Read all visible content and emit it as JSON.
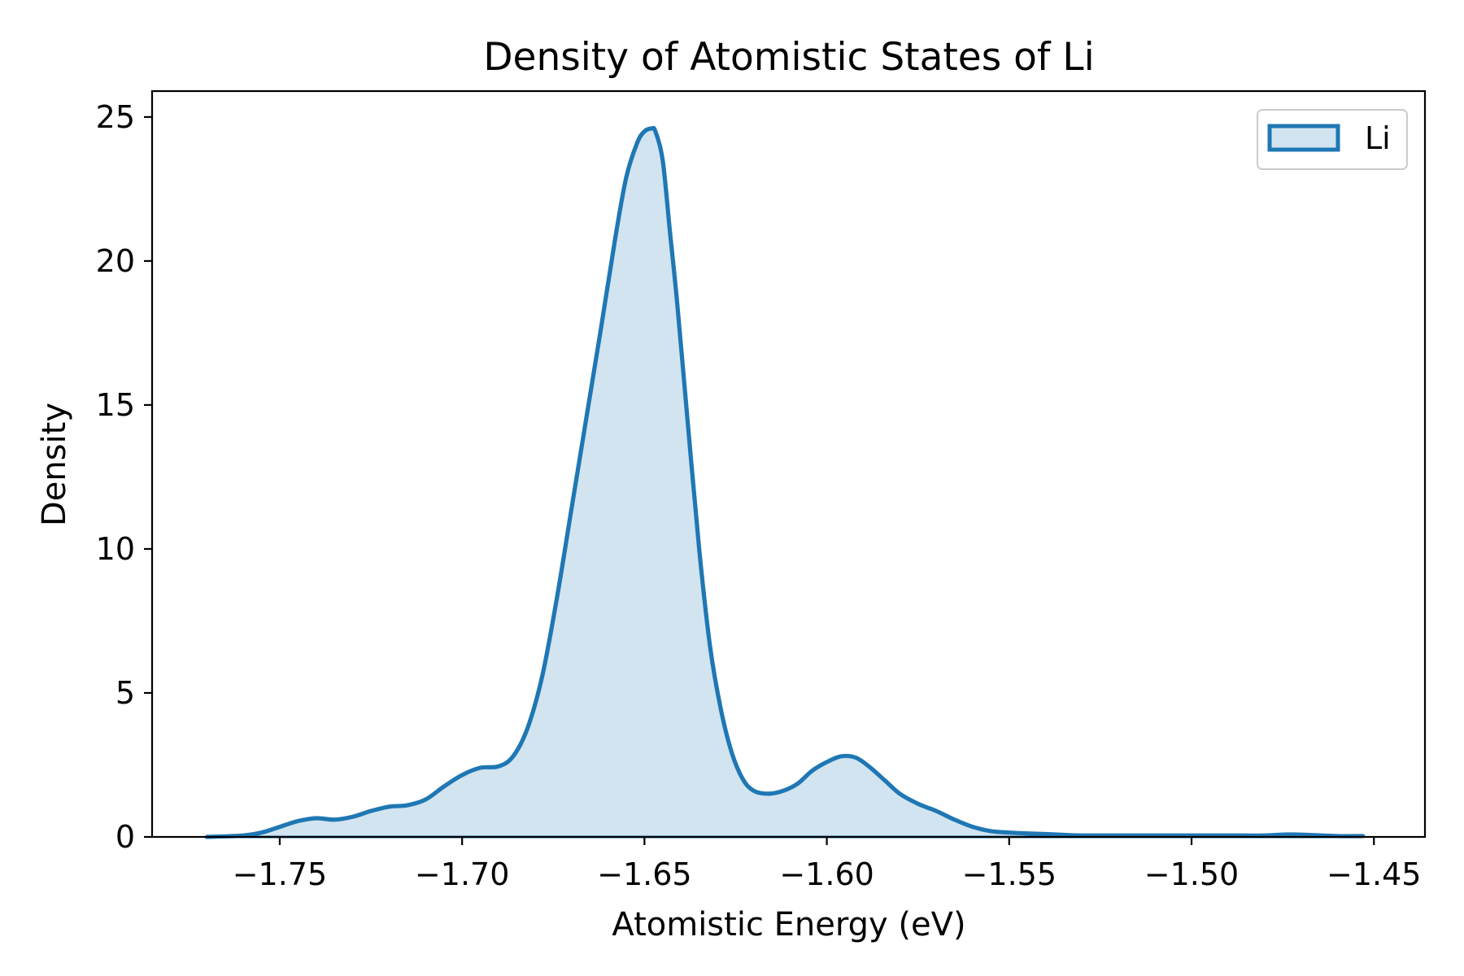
{
  "chart_data": {
    "type": "area",
    "title": "Density of Atomistic States of Li",
    "xlabel": "Atomistic Energy (eV)",
    "ylabel": "Density",
    "xlim": [
      -1.785,
      -1.436
    ],
    "ylim": [
      0,
      25.9
    ],
    "xticks": [
      -1.75,
      -1.7,
      -1.65,
      -1.6,
      -1.55,
      -1.5,
      -1.45
    ],
    "xtick_labels": [
      "−1.75",
      "−1.70",
      "−1.65",
      "−1.60",
      "−1.55",
      "−1.50",
      "−1.45"
    ],
    "yticks": [
      0,
      5,
      10,
      15,
      20,
      25
    ],
    "ytick_labels": [
      "0",
      "5",
      "10",
      "15",
      "20",
      "25"
    ],
    "grid": false,
    "legend_position": "top-right",
    "series": [
      {
        "name": "Li",
        "color": "#1f77b4",
        "fill_color": "#1f77b4",
        "fill_opacity": 0.2,
        "x": [
          -1.77,
          -1.765,
          -1.76,
          -1.755,
          -1.75,
          -1.745,
          -1.74,
          -1.735,
          -1.73,
          -1.725,
          -1.72,
          -1.715,
          -1.71,
          -1.705,
          -1.7,
          -1.695,
          -1.69,
          -1.686,
          -1.682,
          -1.678,
          -1.674,
          -1.67,
          -1.666,
          -1.662,
          -1.658,
          -1.655,
          -1.652,
          -1.65,
          -1.648,
          -1.647,
          -1.645,
          -1.643,
          -1.641,
          -1.638,
          -1.635,
          -1.632,
          -1.629,
          -1.626,
          -1.623,
          -1.62,
          -1.616,
          -1.612,
          -1.608,
          -1.604,
          -1.6,
          -1.596,
          -1.592,
          -1.588,
          -1.584,
          -1.58,
          -1.575,
          -1.57,
          -1.565,
          -1.56,
          -1.555,
          -1.55,
          -1.545,
          -1.54,
          -1.535,
          -1.53,
          -1.52,
          -1.51,
          -1.5,
          -1.49,
          -1.48,
          -1.475,
          -1.47,
          -1.46,
          -1.453
        ],
        "y": [
          0.0,
          0.02,
          0.05,
          0.15,
          0.35,
          0.55,
          0.65,
          0.6,
          0.7,
          0.9,
          1.05,
          1.1,
          1.3,
          1.75,
          2.15,
          2.4,
          2.45,
          2.8,
          3.8,
          5.6,
          8.3,
          11.4,
          14.5,
          17.6,
          20.8,
          22.9,
          24.1,
          24.5,
          24.6,
          24.5,
          23.5,
          21.0,
          18.5,
          14.2,
          10.0,
          6.6,
          4.4,
          2.9,
          2.0,
          1.6,
          1.5,
          1.6,
          1.85,
          2.3,
          2.6,
          2.8,
          2.75,
          2.4,
          1.95,
          1.5,
          1.15,
          0.9,
          0.6,
          0.35,
          0.2,
          0.15,
          0.12,
          0.1,
          0.07,
          0.05,
          0.05,
          0.05,
          0.05,
          0.05,
          0.05,
          0.08,
          0.08,
          0.03,
          0.03
        ]
      }
    ]
  }
}
